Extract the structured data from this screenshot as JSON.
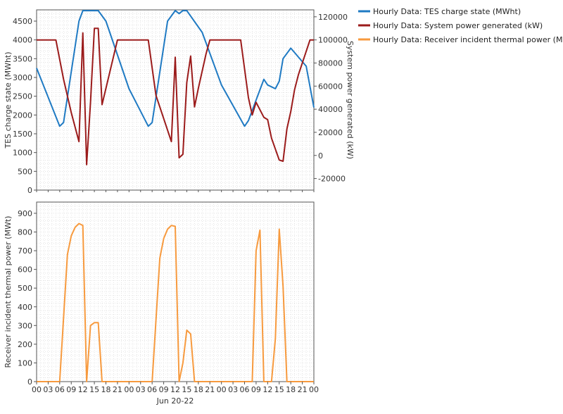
{
  "legend": {
    "items": [
      {
        "label": "Hourly Data: TES charge state (MWht)",
        "color": "#1f7ac3"
      },
      {
        "label": "Hourly Data: System power generated (kW)",
        "color": "#9b1b1b"
      },
      {
        "label": "Hourly Data: Receiver incident thermal power (MWt)",
        "color": "#f79a3e"
      }
    ]
  },
  "chart_data": [
    {
      "type": "line",
      "title": "",
      "xlabel": "Jun 20-22",
      "x_unit": "hour",
      "x_ticks": [
        "00",
        "03",
        "06",
        "09",
        "12",
        "15",
        "18",
        "21",
        "00",
        "03",
        "06",
        "09",
        "12",
        "15",
        "18",
        "21",
        "00",
        "03",
        "06",
        "09",
        "12",
        "15",
        "18",
        "21",
        "00"
      ],
      "ylabel": "TES charge state (MWht)",
      "ylim": [
        0,
        4800
      ],
      "y_ticks": [
        0,
        500,
        1000,
        1500,
        2000,
        2500,
        3000,
        3500,
        4000,
        4500
      ],
      "y2label": "System power generated (kW)",
      "y2lim": [
        -30000,
        126000
      ],
      "y2_ticks": [
        -20000,
        0,
        20000,
        40000,
        60000,
        80000,
        100000,
        120000
      ],
      "grid": true,
      "legend_position": "right",
      "series": [
        {
          "name": "Hourly Data: TES charge state (MWht)",
          "axis": "left",
          "color": "#1f7ac3",
          "x": [
            0,
            6,
            7,
            11,
            12,
            16,
            18,
            24,
            25,
            29,
            30,
            34,
            36,
            37,
            38,
            39,
            43,
            48,
            54,
            55,
            59,
            60,
            61,
            62,
            63,
            64,
            66,
            70,
            72
          ],
          "y": [
            3250,
            1700,
            1800,
            4500,
            4780,
            4780,
            4500,
            2700,
            2500,
            1700,
            1800,
            4500,
            4780,
            4700,
            4780,
            4780,
            4200,
            2800,
            1700,
            1850,
            2950,
            2800,
            2750,
            2700,
            2900,
            3500,
            3780,
            3300,
            2200
          ]
        },
        {
          "name": "Hourly Data: System power generated (kW)",
          "axis": "right",
          "color": "#9b1b1b",
          "x": [
            0,
            5,
            7,
            9,
            11,
            12,
            13,
            14,
            15,
            16,
            17,
            18,
            21,
            29,
            31,
            35,
            36,
            37,
            38,
            39,
            40,
            41,
            42,
            43,
            44,
            45,
            53,
            55,
            56,
            57,
            59,
            60,
            61,
            63,
            64,
            65,
            66,
            67,
            68,
            71,
            72
          ],
          "y": [
            100000,
            100000,
            66000,
            37000,
            12000,
            106000,
            -8000,
            46000,
            110000,
            110000,
            44000,
            58000,
            100000,
            100000,
            52000,
            12000,
            85000,
            -2000,
            1000,
            63000,
            86000,
            42000,
            58000,
            73000,
            88000,
            100000,
            100000,
            50000,
            35000,
            46000,
            33000,
            31000,
            15000,
            -4000,
            -5000,
            23000,
            38000,
            57000,
            70000,
            100000,
            100000
          ]
        }
      ]
    },
    {
      "type": "line",
      "title": "",
      "xlabel": "Jun 20-22",
      "x_unit": "hour",
      "x_ticks": [
        "00",
        "03",
        "06",
        "09",
        "12",
        "15",
        "18",
        "21",
        "00",
        "03",
        "06",
        "09",
        "12",
        "15",
        "18",
        "21",
        "00",
        "03",
        "06",
        "09",
        "12",
        "15",
        "18",
        "21",
        "00"
      ],
      "ylabel": "Receiver incident thermal power (MWt)",
      "ylim": [
        0,
        960
      ],
      "y_ticks": [
        0,
        100,
        200,
        300,
        400,
        500,
        600,
        700,
        800,
        900
      ],
      "grid": true,
      "series": [
        {
          "name": "Hourly Data: Receiver incident thermal power (MWt)",
          "axis": "left",
          "color": "#f79a3e",
          "x": [
            0,
            6,
            8,
            9,
            10,
            11,
            12,
            13,
            14,
            15,
            16,
            17,
            24,
            30,
            32,
            33,
            34,
            35,
            36,
            37,
            38,
            39,
            40,
            41,
            42,
            43,
            54,
            56,
            57,
            58,
            59,
            60,
            61,
            62,
            63,
            64,
            65,
            66,
            72
          ],
          "y": [
            0,
            0,
            680,
            780,
            825,
            845,
            835,
            0,
            300,
            315,
            315,
            0,
            0,
            0,
            660,
            765,
            815,
            835,
            830,
            0,
            100,
            275,
            255,
            0,
            0,
            0,
            0,
            0,
            700,
            810,
            0,
            0,
            0,
            230,
            815,
            510,
            0,
            0,
            0
          ]
        }
      ]
    }
  ]
}
